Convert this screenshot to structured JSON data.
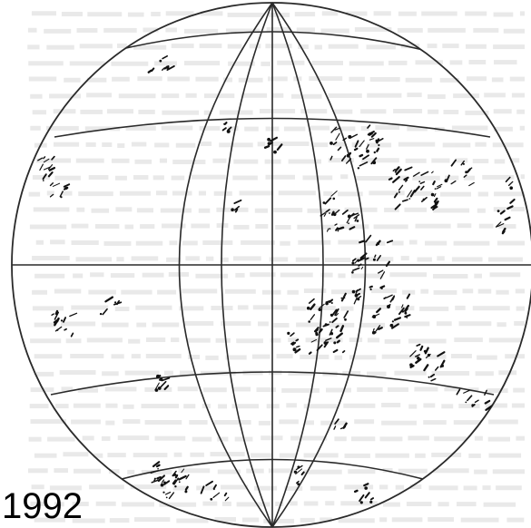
{
  "figure": {
    "year": "1992"
  },
  "colors": {
    "background": "#ffffff",
    "grid_line": "#2a2a2a",
    "spot": "#111111",
    "bleed_text": "#e9e9e9",
    "label": "#000000"
  },
  "icons": {
    "globe": "solar-disk-grid-icon"
  }
}
